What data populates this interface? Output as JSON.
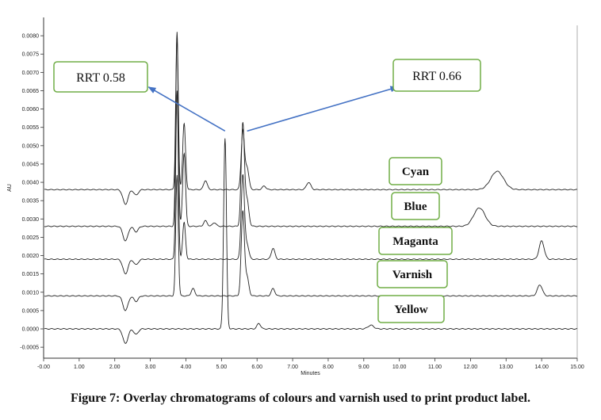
{
  "caption": "Figure 7: Overlay chromatograms of colours and varnish used to print product label.",
  "chart_data": {
    "type": "line",
    "xlabel": "Minutes",
    "ylabel": "AU",
    "xlim": [
      0,
      15
    ],
    "ylim": [
      -0.0008,
      0.0085
    ],
    "x_ticks": [
      0,
      1,
      2,
      3,
      4,
      5,
      6,
      7,
      8,
      9,
      10,
      11,
      12,
      13,
      14,
      15
    ],
    "x_tick_labels": [
      "-0.00",
      "1.00",
      "2.00",
      "3.00",
      "4.00",
      "5.00",
      "6.00",
      "7.00",
      "8.00",
      "9.00",
      "10.00",
      "11.00",
      "12.00",
      "13.00",
      "14.00",
      "15.00"
    ],
    "y_ticks": [
      -0.0005,
      0,
      0.0005,
      0.001,
      0.0015,
      0.002,
      0.0025,
      0.003,
      0.0035,
      0.004,
      0.0045,
      0.005,
      0.0055,
      0.006,
      0.0065,
      0.007,
      0.0075,
      0.008
    ],
    "y_tick_labels": [
      "-0.0005",
      "0.0000",
      "0.0005",
      "0.0010",
      "0.0015",
      "0.0020",
      "0.0025",
      "0.0030",
      "0.0035",
      "0.0040",
      "0.0045",
      "0.0050",
      "0.0055",
      "0.0060",
      "0.0065",
      "0.0070",
      "0.0075",
      "0.0080"
    ],
    "grid": false,
    "line_color": "#222222",
    "series": [
      {
        "name": "Cyan",
        "baseline": 0.0038,
        "peaks": [
          [
            2.3,
            -0.0004,
            0.07
          ],
          [
            2.6,
            -0.00015,
            0.06
          ],
          [
            3.75,
            0.0043,
            0.035
          ],
          [
            3.95,
            0.0018,
            0.04
          ],
          [
            4.55,
            0.00025,
            0.05
          ],
          [
            5.6,
            0.0016,
            0.045
          ],
          [
            5.72,
            0.0006,
            0.05
          ],
          [
            6.2,
            0.0001,
            0.05
          ],
          [
            7.45,
            0.0002,
            0.06
          ],
          [
            12.75,
            0.0005,
            0.18
          ]
        ]
      },
      {
        "name": "Blue",
        "baseline": 0.0028,
        "peaks": [
          [
            2.3,
            -0.0004,
            0.07
          ],
          [
            2.6,
            -0.00015,
            0.06
          ],
          [
            3.75,
            0.0052,
            0.035
          ],
          [
            3.95,
            0.002,
            0.04
          ],
          [
            4.55,
            0.00015,
            0.05
          ],
          [
            4.8,
            0.0001,
            0.05
          ],
          [
            5.6,
            0.0028,
            0.045
          ],
          [
            5.72,
            0.0007,
            0.05
          ],
          [
            12.25,
            0.0005,
            0.16
          ]
        ]
      },
      {
        "name": "Maganta",
        "baseline": 0.0019,
        "peaks": [
          [
            2.3,
            -0.0004,
            0.07
          ],
          [
            2.6,
            -0.00015,
            0.06
          ],
          [
            3.75,
            0.0046,
            0.035
          ],
          [
            3.95,
            0.001,
            0.04
          ],
          [
            5.6,
            0.0023,
            0.045
          ],
          [
            5.72,
            0.0004,
            0.05
          ],
          [
            6.45,
            0.0003,
            0.05
          ],
          [
            14.0,
            0.0005,
            0.07
          ]
        ]
      },
      {
        "name": "Varnish",
        "baseline": 0.0009,
        "peaks": [
          [
            2.3,
            -0.0004,
            0.07
          ],
          [
            2.6,
            -0.00015,
            0.06
          ],
          [
            3.75,
            0.0033,
            0.035
          ],
          [
            4.2,
            0.0002,
            0.05
          ],
          [
            5.6,
            0.0023,
            0.045
          ],
          [
            5.72,
            0.0005,
            0.05
          ],
          [
            6.45,
            0.0002,
            0.05
          ],
          [
            13.95,
            0.0003,
            0.07
          ]
        ]
      },
      {
        "name": "Yellow",
        "baseline": 0.0,
        "peaks": [
          [
            2.3,
            -0.0004,
            0.07
          ],
          [
            2.6,
            -0.00015,
            0.06
          ],
          [
            5.1,
            0.0052,
            0.04
          ],
          [
            6.05,
            0.00015,
            0.05
          ],
          [
            9.2,
            0.0001,
            0.08
          ]
        ]
      }
    ],
    "annotations": [
      {
        "text": "RRT 0.58",
        "arrow_from": [
          5.1,
          0.0054
        ],
        "arrow_to": [
          2.95,
          0.0066
        ]
      },
      {
        "text": "RRT 0.66",
        "arrow_from": [
          5.72,
          0.0054
        ],
        "arrow_to": [
          9.95,
          0.0066
        ]
      }
    ]
  }
}
